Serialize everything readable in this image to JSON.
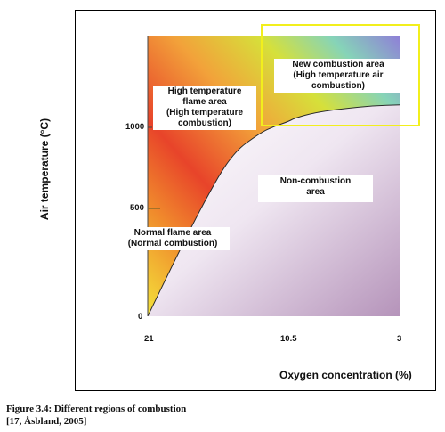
{
  "chart_data": {
    "type": "area",
    "xlabel": "Oxygen concentration (%)",
    "ylabel": "Air temperature (°C)",
    "x_ticks": [
      "21",
      "10.5",
      "3"
    ],
    "y_ticks": [
      "0",
      "500",
      "1000"
    ],
    "xlim": [
      21,
      3
    ],
    "ylim": [
      0,
      1500
    ],
    "boundary_curve": {
      "x": [
        21,
        19,
        17,
        15,
        13,
        12,
        11,
        10.5,
        9,
        7,
        5,
        3
      ],
      "y": [
        0,
        310,
        610,
        870,
        980,
        1015,
        1040,
        1060,
        1090,
        1110,
        1125,
        1130
      ]
    },
    "regions": [
      {
        "name": "high-temp-flame",
        "text": "High temperature flame area (High temperature combustion)"
      },
      {
        "name": "new-combustion",
        "text": "New combustion area (High temperature air combustion)"
      },
      {
        "name": "non-combustion",
        "text": "Non-combustion area"
      },
      {
        "name": "normal-flame",
        "text": "Normal flame area (Normal combustion)"
      }
    ],
    "highlight_color": "#f2ef1c"
  },
  "labels": {
    "high_temp_1": "High temperature",
    "high_temp_2": "flame area",
    "high_temp_3": "(High temperature",
    "high_temp_4": "combustion)",
    "new_1": "New combustion area",
    "new_2": "(High temperature air",
    "new_3": "combustion)",
    "non_1": "Non-combustion",
    "non_2": "area",
    "normal_1": "Normal flame area",
    "normal_2": "(Normal combustion)"
  },
  "caption": {
    "line1": "Figure 3.4: Different regions of combustion",
    "line2": "[17, Åsbland, 2005]"
  }
}
